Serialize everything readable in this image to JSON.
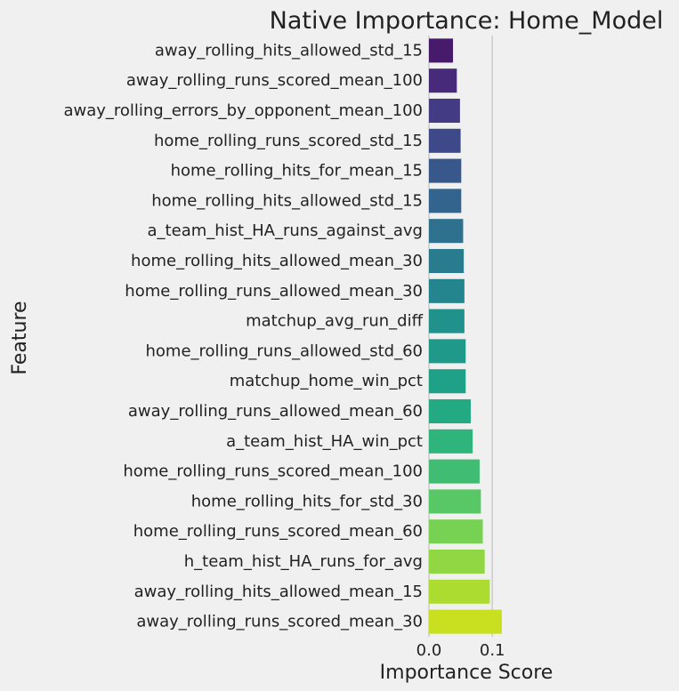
{
  "chart_data": {
    "type": "bar",
    "orientation": "horizontal",
    "title": "Native Importance: Home_Model",
    "xlabel": "Importance Score",
    "ylabel": "Feature",
    "xlim": [
      0.0,
      0.125
    ],
    "xticks": [
      0.0,
      0.1
    ],
    "xtick_labels": [
      "0.0",
      "0.1"
    ],
    "grid": "x only",
    "colormap": "viridis",
    "categories": [
      "away_rolling_hits_allowed_std_15",
      "away_rolling_runs_scored_mean_100",
      "away_rolling_errors_by_opponent_mean_100",
      "home_rolling_runs_scored_std_15",
      "home_rolling_hits_for_mean_15",
      "home_rolling_hits_allowed_std_15",
      "a_team_hist_HA_runs_against_avg",
      "home_rolling_hits_allowed_mean_30",
      "home_rolling_runs_allowed_mean_30",
      "matchup_avg_run_diff",
      "home_rolling_runs_allowed_std_60",
      "matchup_home_win_pct",
      "away_rolling_runs_allowed_mean_60",
      "a_team_hist_HA_win_pct",
      "home_rolling_runs_scored_mean_100",
      "home_rolling_hits_for_std_30",
      "home_rolling_runs_scored_mean_60",
      "h_team_hist_HA_runs_for_avg",
      "away_rolling_hits_allowed_mean_15",
      "away_rolling_runs_scored_mean_30"
    ],
    "values": [
      0.038,
      0.044,
      0.049,
      0.05,
      0.051,
      0.051,
      0.054,
      0.055,
      0.056,
      0.056,
      0.058,
      0.058,
      0.066,
      0.069,
      0.08,
      0.082,
      0.085,
      0.088,
      0.096,
      0.115
    ],
    "colors": [
      "#481a6c",
      "#472a7a",
      "#433c84",
      "#3e4989",
      "#38588c",
      "#32648e",
      "#2d718e",
      "#297b8e",
      "#25858e",
      "#21918c",
      "#1f9a8a",
      "#1fa188",
      "#24aa83",
      "#2fb47c",
      "#40bd72",
      "#58c765",
      "#77d153",
      "#90d743",
      "#addc30",
      "#c8e020"
    ]
  }
}
